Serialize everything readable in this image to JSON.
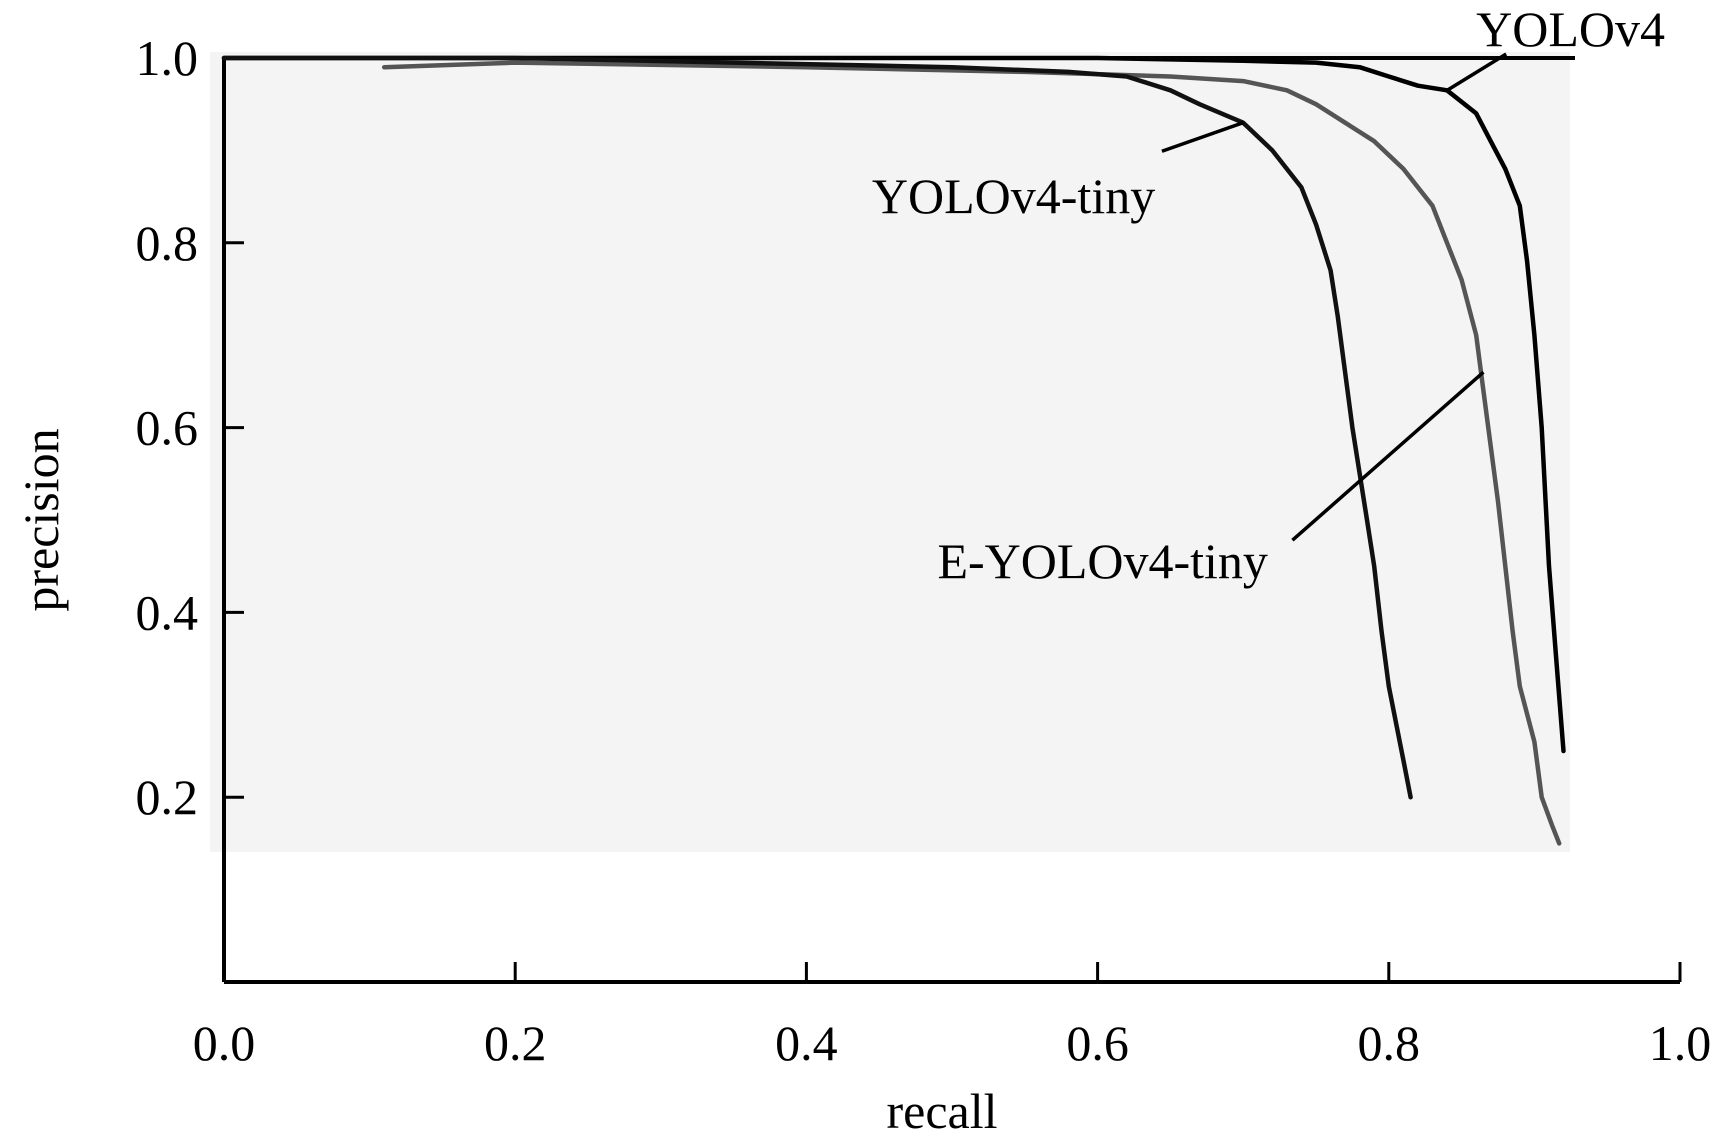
{
  "chart_data": {
    "type": "line",
    "title": "",
    "xlabel": "recall",
    "ylabel": "precision",
    "xlim": [
      0.0,
      1.0
    ],
    "ylim": [
      0.0,
      1.0
    ],
    "x_ticks": [
      0.0,
      0.2,
      0.4,
      0.6,
      0.8,
      1.0
    ],
    "x_tick_labels": [
      "0.0",
      "0.2",
      "0.4",
      "0.6",
      "0.8",
      "1.0"
    ],
    "y_ticks": [
      0.2,
      0.4,
      0.6,
      0.8,
      1.0
    ],
    "y_tick_labels": [
      "0.2",
      "0.4",
      "0.6",
      "0.8",
      "1.0"
    ],
    "grid": false,
    "legend": "none",
    "series": [
      {
        "name": "YOLOv4",
        "color": "#000000",
        "points": [
          [
            0.0,
            1.0
          ],
          [
            0.2,
            1.0
          ],
          [
            0.4,
            1.0
          ],
          [
            0.6,
            1.0
          ],
          [
            0.7,
            0.997
          ],
          [
            0.75,
            0.995
          ],
          [
            0.78,
            0.99
          ],
          [
            0.8,
            0.98
          ],
          [
            0.82,
            0.97
          ],
          [
            0.84,
            0.965
          ],
          [
            0.86,
            0.94
          ],
          [
            0.87,
            0.91
          ],
          [
            0.88,
            0.88
          ],
          [
            0.89,
            0.84
          ],
          [
            0.895,
            0.78
          ],
          [
            0.9,
            0.7
          ],
          [
            0.905,
            0.6
          ],
          [
            0.91,
            0.45
          ],
          [
            0.915,
            0.35
          ],
          [
            0.92,
            0.25
          ]
        ]
      },
      {
        "name": "E-YOLOv4-tiny",
        "color": "#555555",
        "points": [
          [
            0.11,
            0.99
          ],
          [
            0.2,
            0.995
          ],
          [
            0.4,
            0.99
          ],
          [
            0.55,
            0.985
          ],
          [
            0.65,
            0.98
          ],
          [
            0.7,
            0.975
          ],
          [
            0.73,
            0.965
          ],
          [
            0.75,
            0.95
          ],
          [
            0.77,
            0.93
          ],
          [
            0.79,
            0.91
          ],
          [
            0.81,
            0.88
          ],
          [
            0.83,
            0.84
          ],
          [
            0.84,
            0.8
          ],
          [
            0.85,
            0.76
          ],
          [
            0.86,
            0.7
          ],
          [
            0.865,
            0.64
          ],
          [
            0.87,
            0.58
          ],
          [
            0.875,
            0.52
          ],
          [
            0.88,
            0.45
          ],
          [
            0.885,
            0.38
          ],
          [
            0.89,
            0.32
          ],
          [
            0.9,
            0.26
          ],
          [
            0.905,
            0.2
          ],
          [
            0.912,
            0.17
          ],
          [
            0.917,
            0.15
          ]
        ]
      },
      {
        "name": "YOLOv4-tiny",
        "color": "#111111",
        "points": [
          [
            0.0,
            1.0
          ],
          [
            0.2,
            1.0
          ],
          [
            0.35,
            0.995
          ],
          [
            0.5,
            0.99
          ],
          [
            0.58,
            0.985
          ],
          [
            0.62,
            0.98
          ],
          [
            0.65,
            0.965
          ],
          [
            0.67,
            0.95
          ],
          [
            0.7,
            0.93
          ],
          [
            0.72,
            0.9
          ],
          [
            0.74,
            0.86
          ],
          [
            0.75,
            0.82
          ],
          [
            0.76,
            0.77
          ],
          [
            0.765,
            0.72
          ],
          [
            0.77,
            0.66
          ],
          [
            0.775,
            0.6
          ],
          [
            0.78,
            0.55
          ],
          [
            0.785,
            0.5
          ],
          [
            0.79,
            0.45
          ],
          [
            0.795,
            0.38
          ],
          [
            0.8,
            0.32
          ],
          [
            0.805,
            0.28
          ],
          [
            0.81,
            0.24
          ],
          [
            0.815,
            0.2
          ]
        ]
      }
    ],
    "annotations": [
      {
        "text": "YOLOv4",
        "series": "YOLOv4",
        "at": [
          0.84,
          0.965
        ],
        "text_at": [
          0.86,
          1.013
        ]
      },
      {
        "text": "YOLOv4-tiny",
        "series": "YOLOv4-tiny",
        "at": [
          0.7,
          0.93
        ],
        "text_at": [
          0.445,
          0.832
        ]
      },
      {
        "text": "E-YOLOv4-tiny",
        "series": "E-YOLOv4-tiny",
        "at": [
          0.865,
          0.66
        ],
        "text_at": [
          0.49,
          0.437
        ]
      }
    ]
  }
}
